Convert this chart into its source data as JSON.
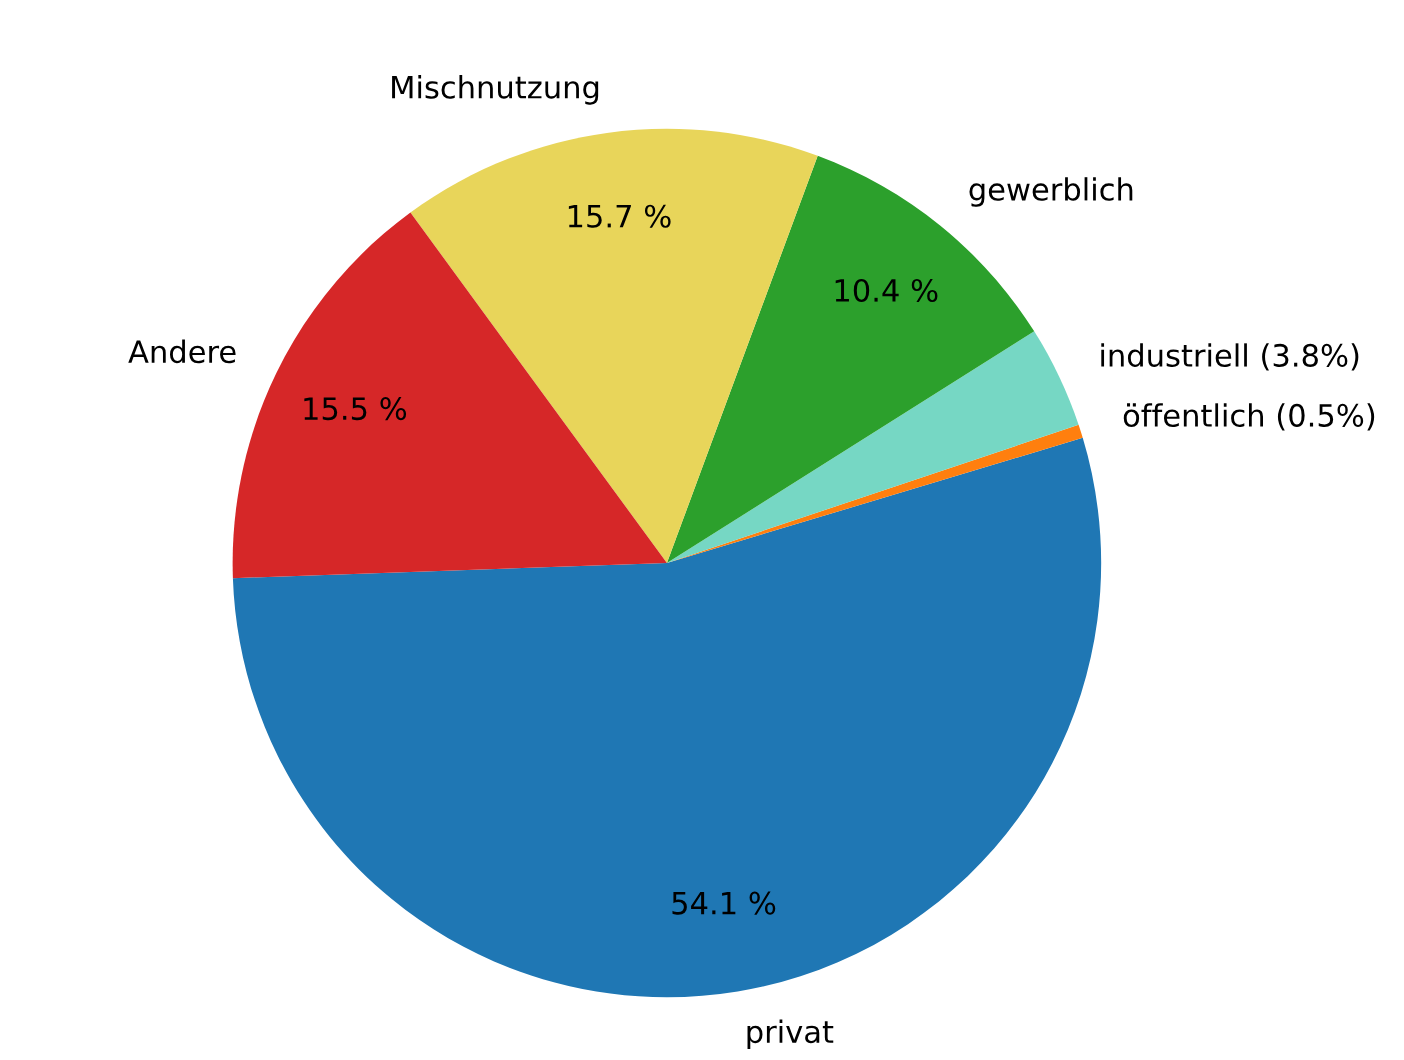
{
  "chart_data": {
    "type": "pie",
    "categories": [
      "privat",
      "öffentlich (0.5%)",
      "industriell (3.8%)",
      "gewerblich",
      "Mischnutzung",
      "Andere"
    ],
    "values": [
      54.1,
      0.5,
      3.8,
      10.4,
      15.7,
      15.5
    ],
    "colors": [
      "#1f77b4",
      "#ff7f0e",
      "#76d7c4",
      "#2ca02c",
      "#e8d55a",
      "#d62728"
    ],
    "value_labels": [
      "54.1 %",
      null,
      null,
      "10.4 %",
      "15.7 %",
      "15.5 %"
    ]
  }
}
